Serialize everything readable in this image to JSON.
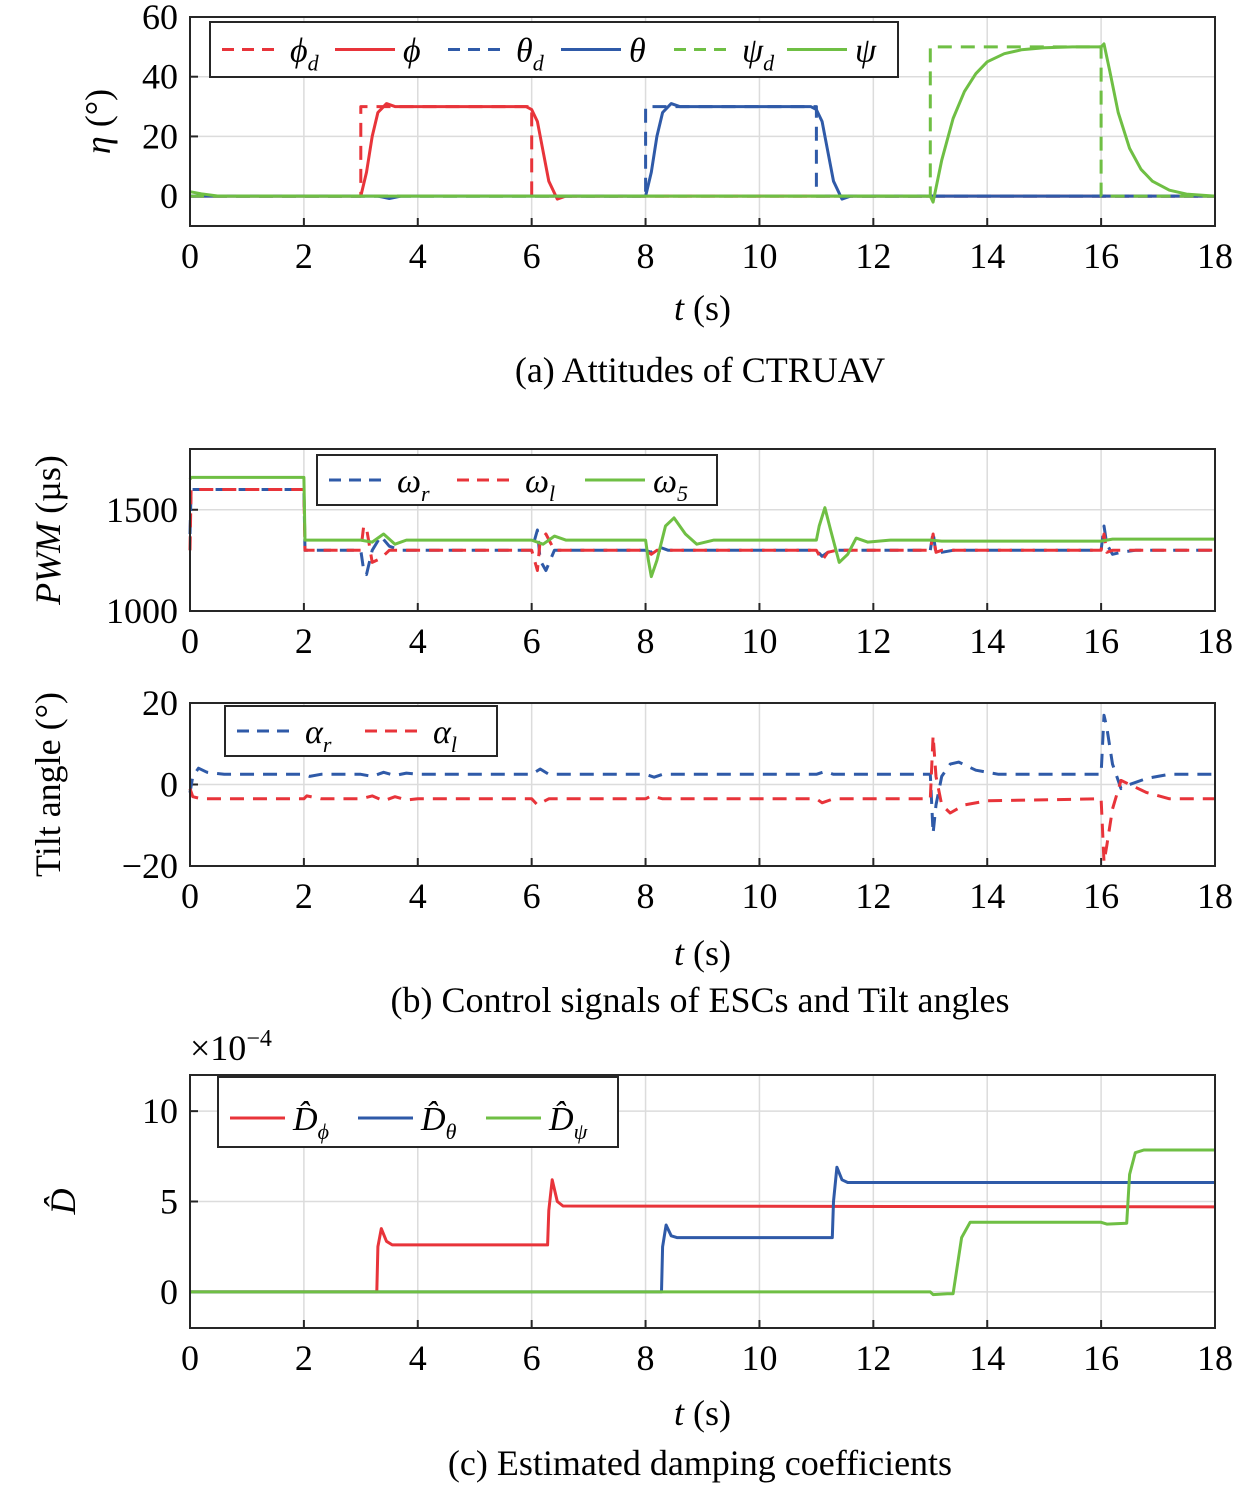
{
  "colors": {
    "red": "#e8343a",
    "blue": "#2f5aa8",
    "green": "#6fbf44"
  },
  "chart_data": [
    {
      "id": "attitudes",
      "type": "line",
      "caption": "(a) Attitudes of CTRUAV",
      "xlabel": "t (s)",
      "ylabel": "η (°)",
      "xlim": [
        0,
        18
      ],
      "ylim": [
        -10,
        60
      ],
      "xticks": [
        "0",
        "2",
        "4",
        "6",
        "8",
        "10",
        "12",
        "14",
        "16",
        "18"
      ],
      "yticks": [
        "0",
        "20",
        "40",
        "60"
      ],
      "grid": true,
      "legend": {
        "placement": "top-left",
        "entries": [
          {
            "label": "ϕ",
            "sub": "d",
            "color": "red",
            "dash": true
          },
          {
            "label": "ϕ",
            "sub": "",
            "color": "red",
            "dash": false
          },
          {
            "label": "θ",
            "sub": "d",
            "color": "blue",
            "dash": true
          },
          {
            "label": "θ",
            "sub": "",
            "color": "blue",
            "dash": false
          },
          {
            "label": "ψ",
            "sub": "d",
            "color": "green",
            "dash": true
          },
          {
            "label": "ψ",
            "sub": "",
            "color": "green",
            "dash": false
          }
        ]
      },
      "series": [
        {
          "name": "ϕ_d",
          "color": "red",
          "dash": true,
          "x": [
            0,
            3,
            3,
            6,
            6,
            18
          ],
          "y": [
            0,
            0,
            30,
            30,
            0,
            0
          ]
        },
        {
          "name": "ϕ",
          "color": "red",
          "dash": false,
          "x": [
            0,
            3,
            3.1,
            3.2,
            3.3,
            3.45,
            3.6,
            4,
            5,
            5.9,
            6,
            6.1,
            6.2,
            6.3,
            6.45,
            6.6,
            7,
            18
          ],
          "y": [
            0,
            0,
            8,
            20,
            28,
            31,
            30,
            30,
            30,
            30,
            29,
            25,
            15,
            5,
            -1,
            0,
            0,
            0
          ]
        },
        {
          "name": "θ_d",
          "color": "blue",
          "dash": true,
          "x": [
            0,
            8,
            8,
            11,
            11,
            18
          ],
          "y": [
            0,
            0,
            30,
            30,
            0,
            0
          ]
        },
        {
          "name": "θ",
          "color": "blue",
          "dash": false,
          "x": [
            0,
            3.3,
            3.5,
            3.7,
            8,
            8.1,
            8.2,
            8.3,
            8.45,
            8.6,
            9,
            10,
            10.9,
            11,
            11.1,
            11.2,
            11.3,
            11.45,
            11.6,
            12,
            18
          ],
          "y": [
            0,
            0,
            -0.8,
            0,
            0,
            8,
            20,
            28,
            31,
            30,
            30,
            30,
            30,
            29,
            25,
            15,
            5,
            -1,
            0,
            0,
            0
          ]
        },
        {
          "name": "ψ_d",
          "color": "green",
          "dash": true,
          "x": [
            0,
            13,
            13,
            16,
            16,
            18
          ],
          "y": [
            0,
            0,
            50,
            50,
            0,
            0
          ]
        },
        {
          "name": "ψ",
          "color": "green",
          "dash": false,
          "x": [
            0,
            0.2,
            0.5,
            13,
            13.05,
            13.2,
            13.4,
            13.6,
            13.8,
            14,
            14.3,
            14.6,
            15,
            15.5,
            16,
            16.05,
            16.15,
            16.3,
            16.5,
            16.7,
            16.9,
            17.2,
            17.5,
            18
          ],
          "y": [
            1.5,
            0.8,
            0,
            0,
            -2,
            12,
            26,
            35,
            41,
            45,
            47.7,
            49,
            49.7,
            50,
            50,
            51,
            42,
            28,
            16,
            9,
            5,
            2,
            0.7,
            0
          ]
        }
      ]
    },
    {
      "id": "pwm",
      "type": "line",
      "caption": "",
      "xlabel": "",
      "ylabel": "PWM (µs)",
      "xlim": [
        0,
        18
      ],
      "ylim": [
        1000,
        1800
      ],
      "xticks": [
        "0",
        "2",
        "4",
        "6",
        "8",
        "10",
        "12",
        "14",
        "16",
        "18"
      ],
      "yticks": [
        "1000",
        "1500"
      ],
      "grid": true,
      "legend": {
        "placement": "top-left",
        "entries": [
          {
            "label": "ω",
            "sub": "r",
            "color": "blue",
            "dash": true
          },
          {
            "label": "ω",
            "sub": "l",
            "color": "red",
            "dash": true
          },
          {
            "label": "ω",
            "sub": "5",
            "color": "green",
            "dash": false
          }
        ]
      },
      "series": [
        {
          "name": "ω_r",
          "color": "blue",
          "dash": true,
          "x": [
            0,
            0.02,
            2,
            2.02,
            3.0,
            3.05,
            3.1,
            3.2,
            3.35,
            3.5,
            3.7,
            6.0,
            6.1,
            6.15,
            6.25,
            6.4,
            6.6,
            8.0,
            8.1,
            8.2,
            8.4,
            11.0,
            11.1,
            11.2,
            11.35,
            13.0,
            13.05,
            13.1,
            13.2,
            13.4,
            16.0,
            16.05,
            16.1,
            16.2,
            16.35,
            16.6,
            18
          ],
          "y": [
            1380,
            1600,
            1600,
            1300,
            1300,
            1200,
            1180,
            1300,
            1370,
            1320,
            1300,
            1300,
            1400,
            1250,
            1200,
            1300,
            1300,
            1300,
            1290,
            1320,
            1300,
            1300,
            1270,
            1290,
            1300,
            1300,
            1390,
            1280,
            1290,
            1300,
            1300,
            1420,
            1330,
            1280,
            1290,
            1300,
            1300
          ]
        },
        {
          "name": "ω_l",
          "color": "red",
          "dash": true,
          "x": [
            0,
            0.02,
            2,
            2.02,
            3.0,
            3.05,
            3.1,
            3.2,
            3.35,
            3.5,
            3.7,
            6.0,
            6.1,
            6.15,
            6.25,
            6.4,
            6.6,
            8.0,
            8.1,
            8.2,
            8.4,
            11.0,
            11.1,
            11.2,
            11.35,
            13.0,
            13.05,
            13.1,
            13.2,
            13.4,
            16.0,
            16.05,
            16.1,
            16.2,
            16.35,
            16.6,
            18
          ],
          "y": [
            1300,
            1600,
            1600,
            1300,
            1300,
            1420,
            1410,
            1240,
            1260,
            1300,
            1300,
            1300,
            1200,
            1350,
            1380,
            1300,
            1300,
            1300,
            1280,
            1300,
            1300,
            1300,
            1250,
            1290,
            1300,
            1300,
            1380,
            1290,
            1300,
            1300,
            1300,
            1380,
            1290,
            1300,
            1300,
            1300,
            1300
          ]
        },
        {
          "name": "ω_5",
          "color": "green",
          "dash": false,
          "x": [
            0,
            0.02,
            2,
            2.02,
            3.0,
            3.2,
            3.4,
            3.6,
            3.8,
            6.0,
            6.2,
            6.4,
            6.6,
            8.0,
            8.05,
            8.1,
            8.2,
            8.35,
            8.5,
            8.7,
            8.9,
            9.2,
            11.0,
            11.05,
            11.15,
            11.25,
            11.4,
            11.55,
            11.7,
            11.9,
            12.3,
            13,
            13.2,
            16,
            16.2,
            18
          ],
          "y": [
            1650,
            1660,
            1660,
            1350,
            1350,
            1340,
            1380,
            1330,
            1350,
            1350,
            1330,
            1370,
            1350,
            1350,
            1250,
            1170,
            1250,
            1420,
            1460,
            1380,
            1330,
            1350,
            1350,
            1420,
            1510,
            1400,
            1240,
            1280,
            1360,
            1340,
            1350,
            1350,
            1345,
            1345,
            1355,
            1355
          ]
        }
      ]
    },
    {
      "id": "tilt",
      "type": "line",
      "caption": "(b) Control signals of ESCs and Tilt angles",
      "xlabel": "t (s)",
      "ylabel": "Tilt angle (°)",
      "xlim": [
        0,
        18
      ],
      "ylim": [
        -20,
        20
      ],
      "xticks": [
        "0",
        "2",
        "4",
        "6",
        "8",
        "10",
        "12",
        "14",
        "16",
        "18"
      ],
      "yticks": [
        "−20",
        "0",
        "20"
      ],
      "grid": true,
      "legend": {
        "placement": "top-left",
        "entries": [
          {
            "label": "α",
            "sub": "r",
            "color": "blue",
            "dash": true
          },
          {
            "label": "α",
            "sub": "l",
            "color": "red",
            "dash": true
          }
        ]
      },
      "series": [
        {
          "name": "α_r",
          "color": "blue",
          "dash": true,
          "x": [
            0,
            0.05,
            0.15,
            0.3,
            0.6,
            2,
            2.1,
            2.3,
            3,
            3.2,
            3.4,
            3.6,
            3.8,
            4,
            6,
            6.15,
            6.3,
            8,
            8.15,
            8.3,
            11,
            11.15,
            11.3,
            13,
            13.05,
            13.1,
            13.2,
            13.35,
            13.5,
            13.8,
            14.2,
            16,
            16.05,
            16.1,
            16.2,
            16.35,
            16.5,
            16.8,
            17.2,
            18
          ],
          "y": [
            -2,
            2,
            4,
            3,
            2.5,
            2.5,
            2.0,
            2.5,
            2.5,
            2.0,
            3.0,
            2.2,
            2.8,
            2.5,
            2.5,
            3.8,
            2.5,
            2.5,
            1.8,
            2.5,
            2.5,
            3.2,
            2.5,
            2.5,
            -12,
            -5,
            2,
            5,
            5.5,
            3.5,
            2.5,
            2.5,
            17,
            14,
            5,
            -1,
            0,
            1.5,
            2.5,
            2.5
          ]
        },
        {
          "name": "α_l",
          "color": "red",
          "dash": true,
          "x": [
            0,
            0.05,
            0.2,
            2,
            2.05,
            2.3,
            3,
            3.2,
            3.4,
            3.6,
            3.8,
            4,
            6,
            6.1,
            6.3,
            8,
            8.1,
            8.3,
            11,
            11.1,
            11.3,
            13,
            13.05,
            13.1,
            13.2,
            13.35,
            13.6,
            14,
            16,
            16.05,
            16.1,
            16.2,
            16.35,
            16.5,
            16.8,
            17.2,
            18
          ],
          "y": [
            -1,
            -3,
            -3.5,
            -3.5,
            -2.8,
            -3.5,
            -3.5,
            -2.8,
            -4,
            -3,
            -3.8,
            -3.5,
            -3.5,
            -5,
            -3.5,
            -3.5,
            -2.8,
            -3.5,
            -3.5,
            -4.5,
            -3.5,
            -3.5,
            12,
            2,
            -5,
            -7,
            -5,
            -4,
            -3.5,
            -19,
            -15,
            -6,
            1,
            0,
            -2,
            -3.5,
            -3.5
          ]
        }
      ]
    },
    {
      "id": "damping",
      "type": "line",
      "caption": "(c) Estimated damping coefficients",
      "xlabel": "t (s)",
      "ylabel": "D̂",
      "multiplier": "×10",
      "multiplier_exp": "−4",
      "xlim": [
        0,
        18
      ],
      "ylim": [
        -2,
        12
      ],
      "xticks": [
        "0",
        "2",
        "4",
        "6",
        "8",
        "10",
        "12",
        "14",
        "16",
        "18"
      ],
      "yticks": [
        "0",
        "5",
        "10"
      ],
      "grid": true,
      "legend": {
        "placement": "top-left",
        "entries": [
          {
            "label": "D̂",
            "sub": "ϕ",
            "color": "red",
            "dash": false
          },
          {
            "label": "D̂",
            "sub": "θ",
            "color": "blue",
            "dash": false
          },
          {
            "label": "D̂",
            "sub": "ψ",
            "color": "green",
            "dash": false
          }
        ]
      },
      "series": [
        {
          "name": "D̂_ϕ",
          "color": "red",
          "dash": false,
          "x": [
            0,
            3.28,
            3.3,
            3.36,
            3.45,
            3.55,
            6.28,
            6.3,
            6.36,
            6.45,
            6.55,
            18
          ],
          "y": [
            0,
            0,
            2.5,
            3.5,
            2.8,
            2.6,
            2.6,
            4.5,
            6.2,
            5.0,
            4.75,
            4.7
          ]
        },
        {
          "name": "D̂_θ",
          "color": "blue",
          "dash": false,
          "x": [
            0,
            8.28,
            8.3,
            8.36,
            8.45,
            8.55,
            11.28,
            11.3,
            11.36,
            11.45,
            11.55,
            18
          ],
          "y": [
            0,
            0,
            2.5,
            3.7,
            3.1,
            3.0,
            3.0,
            5.0,
            6.9,
            6.2,
            6.05,
            6.05
          ]
        },
        {
          "name": "D̂_ψ",
          "color": "green",
          "dash": false,
          "x": [
            0,
            13,
            13.05,
            13.3,
            13.4,
            13.55,
            13.7,
            16,
            16.1,
            16.45,
            16.5,
            16.6,
            16.75,
            18
          ],
          "y": [
            0,
            0,
            -0.15,
            -0.1,
            -0.1,
            3.0,
            3.85,
            3.85,
            3.75,
            3.8,
            6.5,
            7.7,
            7.85,
            7.85
          ]
        }
      ]
    }
  ]
}
